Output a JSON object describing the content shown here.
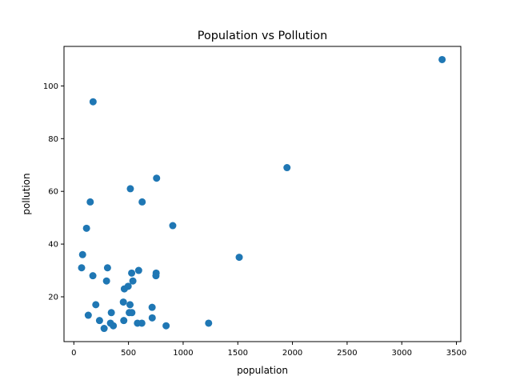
{
  "chart_data": {
    "type": "scatter",
    "title": "Population vs Pollution",
    "xlabel": "population",
    "ylabel": "pollution",
    "xlim": [
      -90,
      3540
    ],
    "ylim": [
      3,
      115
    ],
    "xticks": [
      0,
      500,
      1000,
      1500,
      2000,
      2500,
      3000,
      3500
    ],
    "yticks": [
      20,
      40,
      60,
      80,
      100
    ],
    "grid": false,
    "legend": false,
    "point_color": "#1f77b4",
    "points": [
      {
        "x": 3369,
        "y": 110
      },
      {
        "x": 176,
        "y": 94
      },
      {
        "x": 1950,
        "y": 69
      },
      {
        "x": 757,
        "y": 65
      },
      {
        "x": 517,
        "y": 61
      },
      {
        "x": 150,
        "y": 56
      },
      {
        "x": 625,
        "y": 56
      },
      {
        "x": 905,
        "y": 47
      },
      {
        "x": 116,
        "y": 46
      },
      {
        "x": 80,
        "y": 36
      },
      {
        "x": 1513,
        "y": 35
      },
      {
        "x": 71,
        "y": 31
      },
      {
        "x": 308,
        "y": 31
      },
      {
        "x": 593,
        "y": 30
      },
      {
        "x": 529,
        "y": 29
      },
      {
        "x": 753,
        "y": 29
      },
      {
        "x": 174,
        "y": 28
      },
      {
        "x": 751,
        "y": 28
      },
      {
        "x": 299,
        "y": 26
      },
      {
        "x": 540,
        "y": 26
      },
      {
        "x": 497,
        "y": 24
      },
      {
        "x": 462,
        "y": 23
      },
      {
        "x": 453,
        "y": 18
      },
      {
        "x": 201,
        "y": 17
      },
      {
        "x": 514,
        "y": 17
      },
      {
        "x": 716,
        "y": 16
      },
      {
        "x": 343,
        "y": 14
      },
      {
        "x": 507,
        "y": 14
      },
      {
        "x": 531,
        "y": 14
      },
      {
        "x": 132,
        "y": 13
      },
      {
        "x": 717,
        "y": 12
      },
      {
        "x": 235,
        "y": 11
      },
      {
        "x": 457,
        "y": 11
      },
      {
        "x": 335,
        "y": 10
      },
      {
        "x": 582,
        "y": 10
      },
      {
        "x": 622,
        "y": 10
      },
      {
        "x": 1233,
        "y": 10
      },
      {
        "x": 277,
        "y": 8
      },
      {
        "x": 361,
        "y": 9
      },
      {
        "x": 844,
        "y": 9
      }
    ]
  }
}
